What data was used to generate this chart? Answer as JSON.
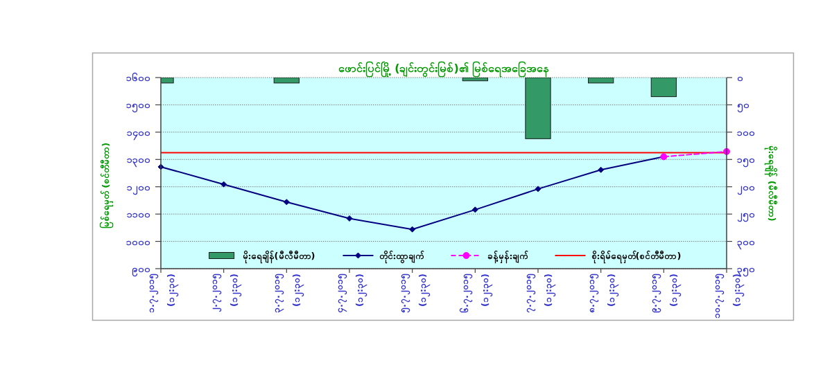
{
  "chart_data": {
    "type": "line",
    "title": "ဖောင်းပြင်မြို့ (ချင်းတွင်းမြစ်)၏ မြစ်ရေအခြေအနေ",
    "ylabel": "မြစ်ရေမှတ် (စင်တီမီတာ)",
    "y2label": "မိုးရေချိန် (မီလီမီတာ)",
    "categories": [
      "၁.၇.၂၀၁၅\n(၁၂:၃၀)",
      "၂.၇.၂၀၁၅\n(၁၂:၃၀)",
      "၃.၇.၂၀၁၅\n(၁၂:၃၀)",
      "၄.၇.၂၀၁၅\n(၁၂:၃၀)",
      "၅.၇.၂၀၁၅\n(၁၂:၃၀)",
      "၆.၇.၂၀၁၅\n(၁၂:၃၀)",
      "၇.၇.၂၀၁၅\n(၁၂:၃၀)",
      "၈.၇.၂၀၁၅\n(၁၂:၃၀)",
      "၉.၇.၂၀၁၅\n(၁၂:၃၀)",
      "၁၀.၇.၂၀၁၅\n(၁၂:၃၀)"
    ],
    "series": [
      {
        "name": "မိုးရေချိန်(မီလီမီတာ)",
        "type": "bar",
        "axis": "y2",
        "color": "#339966",
        "values": [
          10,
          0,
          10,
          0,
          0,
          6,
          112,
          10,
          35,
          0
        ]
      },
      {
        "name": "တိုင်းထွာချက်",
        "color": "#000080",
        "marker": "diamond",
        "values": [
          1273,
          1209,
          1144,
          1084,
          1044,
          1116,
          1192,
          1262,
          1310,
          null
        ]
      },
      {
        "name": "ခန့်မှန်းချက်",
        "color": "#ff00ff",
        "marker": "circle",
        "line_style": "dashed",
        "values": [
          null,
          null,
          null,
          null,
          null,
          null,
          null,
          null,
          1310,
          1329
        ]
      }
    ],
    "ref_lines": [
      {
        "axis": "y",
        "value": 1325,
        "label": "စိုးရိမ်ရေမှတ်(စင်တီမီတာ)",
        "color": "#ff0000"
      }
    ],
    "ylim": [
      900,
      1600
    ],
    "yticks": [
      {
        "value": 900,
        "label": "၉၀၀"
      },
      {
        "value": 1000,
        "label": "၁၀၀၀"
      },
      {
        "value": 1100,
        "label": "၁၁၀၀"
      },
      {
        "value": 1200,
        "label": "၁၂၀၀"
      },
      {
        "value": 1300,
        "label": "၁၃၀၀"
      },
      {
        "value": 1400,
        "label": "၁၄၀၀"
      },
      {
        "value": 1500,
        "label": "၁၅၀၀"
      },
      {
        "value": 1600,
        "label": "၁၆၀၀"
      }
    ],
    "y2lim": [
      350,
      0
    ],
    "y2ticks": [
      {
        "value": 0,
        "label": "၀"
      },
      {
        "value": 50,
        "label": "၅၀"
      },
      {
        "value": 100,
        "label": "၁၀၀"
      },
      {
        "value": 150,
        "label": "၁၅၀"
      },
      {
        "value": 200,
        "label": "၂၀၀"
      },
      {
        "value": 250,
        "label": "၂၅၀"
      },
      {
        "value": 300,
        "label": "၃၀၀"
      },
      {
        "value": 350,
        "label": "၃၅၀"
      }
    ],
    "grid": "y",
    "legend": "bottom"
  }
}
